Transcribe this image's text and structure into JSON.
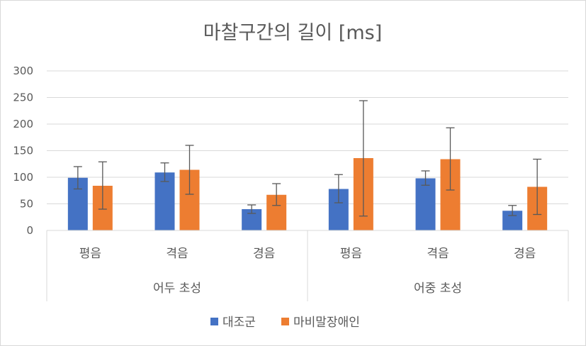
{
  "chart_data": {
    "type": "bar",
    "title": "마찰구간의 길이 [ms]",
    "xlabel": "",
    "ylabel": "",
    "ylim": [
      0,
      300
    ],
    "yticks": [
      0,
      50,
      100,
      150,
      200,
      250,
      300
    ],
    "grid": true,
    "legend_position": "bottom",
    "groups": [
      {
        "label": "어두 초성",
        "categories": [
          "평음",
          "격음",
          "경음"
        ]
      },
      {
        "label": "어중 초성",
        "categories": [
          "평음",
          "격음",
          "경음"
        ]
      }
    ],
    "series": [
      {
        "name": "대조군",
        "color": "#4472c4",
        "values": [
          99,
          109,
          40,
          78,
          98,
          37
        ],
        "error_low": [
          78,
          92,
          32,
          52,
          85,
          28
        ],
        "error_high": [
          120,
          127,
          48,
          105,
          112,
          47
        ]
      },
      {
        "name": "마비말장애인",
        "color": "#ed7d31",
        "values": [
          84,
          114,
          67,
          136,
          134,
          82
        ],
        "error_low": [
          40,
          68,
          47,
          27,
          76,
          30
        ],
        "error_high": [
          129,
          160,
          88,
          244,
          193,
          134
        ]
      }
    ]
  }
}
